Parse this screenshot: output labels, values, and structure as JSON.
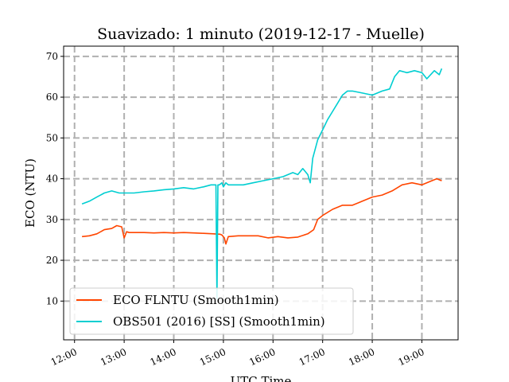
{
  "chart_data": {
    "type": "line",
    "title": "Suavizado: 1 minuto (2019-12-17 - Muelle)",
    "xlabel": "UTC Time",
    "ylabel": "ECO (NTU)",
    "xlim": [
      11.78,
      19.73
    ],
    "ylim": [
      0.5,
      72.5
    ],
    "x_ticks": [
      12,
      13,
      14,
      15,
      16,
      17,
      18,
      19
    ],
    "x_tick_labels": [
      "12:00",
      "13:00",
      "14:00",
      "15:00",
      "16:00",
      "17:00",
      "18:00",
      "19:00"
    ],
    "y_ticks": [
      10,
      20,
      30,
      40,
      50,
      60,
      70
    ],
    "y_tick_labels": [
      "10",
      "20",
      "30",
      "40",
      "50",
      "60",
      "70"
    ],
    "grid": true,
    "legend_position": "bottom-left",
    "series": [
      {
        "name": "ECO FLNTU (Smooth1min)",
        "color": "#ff4500",
        "x": [
          12.15,
          12.3,
          12.45,
          12.6,
          12.75,
          12.85,
          12.95,
          13.0,
          13.05,
          13.1,
          13.2,
          13.4,
          13.6,
          13.8,
          14.0,
          14.2,
          14.4,
          14.6,
          14.8,
          14.93,
          14.97,
          15.02,
          15.05,
          15.1,
          15.3,
          15.5,
          15.7,
          15.9,
          16.1,
          16.3,
          16.5,
          16.7,
          16.82,
          16.9,
          17.0,
          17.2,
          17.4,
          17.6,
          17.8,
          18.0,
          18.2,
          18.4,
          18.6,
          18.8,
          19.0,
          19.2,
          19.3,
          19.4
        ],
        "y": [
          25.8,
          26.0,
          26.5,
          27.5,
          27.8,
          28.5,
          28.2,
          25.5,
          27.0,
          26.8,
          26.8,
          26.8,
          26.7,
          26.8,
          26.7,
          26.8,
          26.7,
          26.6,
          26.5,
          26.4,
          26.2,
          25.5,
          24.0,
          25.8,
          26.0,
          26.0,
          26.0,
          25.5,
          25.8,
          25.5,
          25.7,
          26.5,
          27.5,
          30.0,
          31.0,
          32.5,
          33.5,
          33.5,
          34.5,
          35.5,
          36.0,
          37.0,
          38.5,
          39.0,
          38.5,
          39.5,
          40.0,
          39.5
        ]
      },
      {
        "name": "OBS501 (2016) [SS] (Smooth1min)",
        "color": "#00ced1",
        "x": [
          12.15,
          12.3,
          12.45,
          12.6,
          12.75,
          12.9,
          13.0,
          13.1,
          13.2,
          13.4,
          13.6,
          13.8,
          14.0,
          14.2,
          14.4,
          14.6,
          14.75,
          14.85,
          14.87,
          14.89,
          14.92,
          14.97,
          15.0,
          15.05,
          15.1,
          15.2,
          15.4,
          15.6,
          15.8,
          16.0,
          16.2,
          16.4,
          16.5,
          16.6,
          16.7,
          16.75,
          16.8,
          16.9,
          17.0,
          17.1,
          17.2,
          17.3,
          17.4,
          17.5,
          17.6,
          17.8,
          18.0,
          18.2,
          18.35,
          18.45,
          18.55,
          18.7,
          18.85,
          19.0,
          19.1,
          19.25,
          19.35,
          19.4
        ],
        "y": [
          33.8,
          34.5,
          35.5,
          36.5,
          37.0,
          36.5,
          36.5,
          36.5,
          36.5,
          36.8,
          37.0,
          37.3,
          37.5,
          37.8,
          37.5,
          38.0,
          38.5,
          38.5,
          10.5,
          38.5,
          38.5,
          39.0,
          38.0,
          39.0,
          38.5,
          38.5,
          38.5,
          39.0,
          39.5,
          40.0,
          40.5,
          41.5,
          41.0,
          42.5,
          41.0,
          39.0,
          45.0,
          49.5,
          52.0,
          54.5,
          56.5,
          58.5,
          60.5,
          61.5,
          61.5,
          61.0,
          60.5,
          61.5,
          62.0,
          65.0,
          66.5,
          66.0,
          66.5,
          66.0,
          64.5,
          66.5,
          65.5,
          67.0
        ]
      }
    ]
  }
}
